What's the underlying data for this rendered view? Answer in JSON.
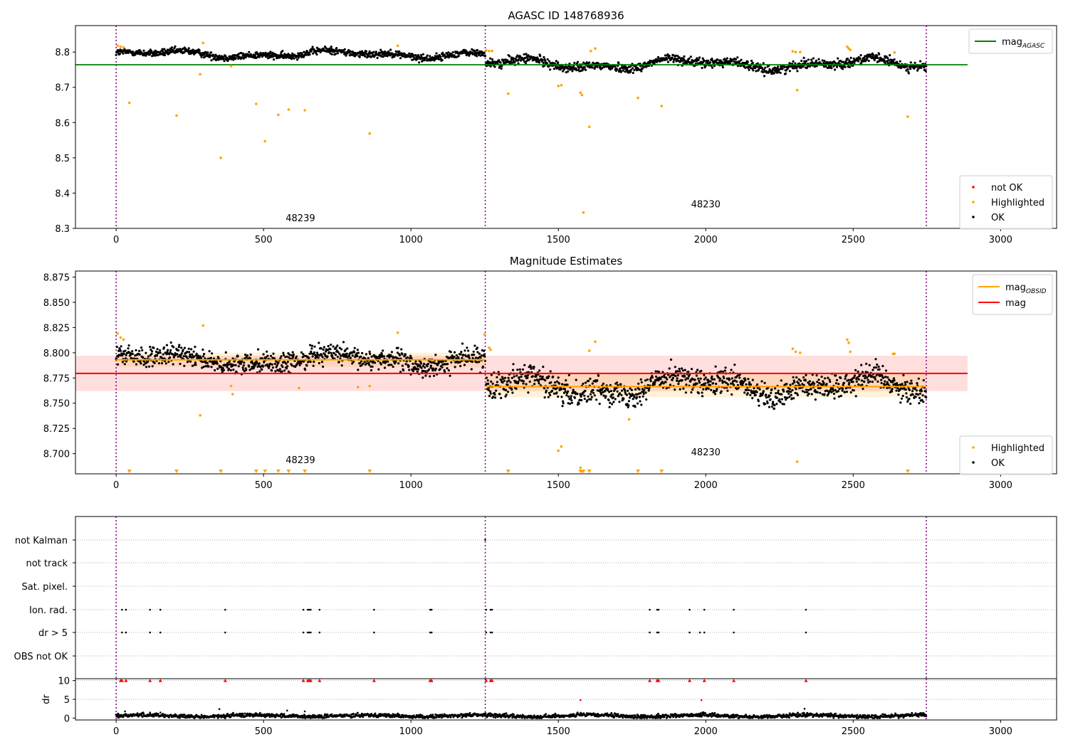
{
  "figure": {
    "title": "AGASC ID 148768936"
  },
  "chart_data": [
    {
      "type": "scatter",
      "title": "AGASC ID 148768936",
      "xlim": [
        -138,
        3190
      ],
      "ylim": [
        8.3,
        8.875
      ],
      "xticks": [
        0,
        500,
        1000,
        1500,
        2000,
        2500,
        3000
      ],
      "yticks": [
        8.3,
        8.4,
        8.5,
        8.6,
        8.7,
        8.8
      ],
      "ytick_labels": [
        "8.3",
        "8.4",
        "8.5",
        "8.6",
        "8.7",
        "8.8"
      ],
      "legend_top": {
        "placement": "top-right",
        "entries": [
          {
            "label": "mag",
            "sub": "AGASC",
            "color": "#008000",
            "kind": "line"
          }
        ]
      },
      "legend_bottom": {
        "placement": "bottom-right",
        "entries": [
          {
            "label": "not OK",
            "color": "#ff0000",
            "kind": "dot"
          },
          {
            "label": "Highlighted",
            "color": "#ffa500",
            "kind": "dot"
          },
          {
            "label": "OK",
            "color": "#000000",
            "kind": "dot"
          }
        ]
      },
      "obs_boundaries": [
        0,
        1252,
        2748
      ],
      "obs_labels": [
        {
          "text": "48239",
          "x": 625,
          "y": 8.32
        },
        {
          "text": "48230",
          "x": 2000,
          "y": 8.36
        }
      ],
      "lines": [
        {
          "name": "mag_AGASC",
          "y": 8.764,
          "x": [
            -138,
            2888
          ],
          "color": "#008000"
        }
      ],
      "ok_segments": [
        {
          "x": [
            0,
            1252
          ],
          "mean": 8.794,
          "amp": 0.012,
          "noise": 0.007
        },
        {
          "x": [
            1255,
            2748
          ],
          "mean": 8.766,
          "amp": 0.018,
          "noise": 0.009
        }
      ],
      "highlighted": [
        [
          5,
          8.818
        ],
        [
          15,
          8.815
        ],
        [
          25,
          8.813
        ],
        [
          45,
          8.656
        ],
        [
          205,
          8.62
        ],
        [
          285,
          8.737
        ],
        [
          295,
          8.826
        ],
        [
          355,
          8.5
        ],
        [
          390,
          8.76
        ],
        [
          475,
          8.653
        ],
        [
          505,
          8.547
        ],
        [
          550,
          8.622
        ],
        [
          585,
          8.637
        ],
        [
          640,
          8.635
        ],
        [
          860,
          8.569
        ],
        [
          955,
          8.818
        ],
        [
          1255,
          8.805
        ],
        [
          1265,
          8.803
        ],
        [
          1275,
          8.803
        ],
        [
          1330,
          8.682
        ],
        [
          1500,
          8.704
        ],
        [
          1510,
          8.706
        ],
        [
          1575,
          8.685
        ],
        [
          1580,
          8.678
        ],
        [
          1585,
          8.345
        ],
        [
          1605,
          8.588
        ],
        [
          1610,
          8.803
        ],
        [
          1625,
          8.81
        ],
        [
          1770,
          8.67
        ],
        [
          1850,
          8.647
        ],
        [
          2295,
          8.802
        ],
        [
          2305,
          8.8
        ],
        [
          2310,
          8.692
        ],
        [
          2320,
          8.8
        ],
        [
          2480,
          8.815
        ],
        [
          2485,
          8.81
        ],
        [
          2490,
          8.806
        ],
        [
          2640,
          8.799
        ],
        [
          2685,
          8.617
        ]
      ]
    },
    {
      "type": "scatter",
      "title": "Magnitude Estimates",
      "xlim": [
        -138,
        3190
      ],
      "ylim": [
        8.68,
        8.881
      ],
      "xticks": [
        0,
        500,
        1000,
        1500,
        2000,
        2500,
        3000
      ],
      "yticks": [
        8.7,
        8.725,
        8.75,
        8.775,
        8.8,
        8.825,
        8.85,
        8.875
      ],
      "ytick_labels": [
        "8.700",
        "8.725",
        "8.750",
        "8.775",
        "8.800",
        "8.825",
        "8.850",
        "8.875"
      ],
      "legend_top": {
        "placement": "top-right",
        "entries": [
          {
            "label": "mag",
            "sub": "OBSID",
            "color": "#ffa500",
            "kind": "line"
          },
          {
            "label": "mag",
            "sub": "",
            "color": "#ff0000",
            "kind": "line"
          }
        ]
      },
      "legend_bottom": {
        "placement": "bottom-right",
        "entries": [
          {
            "label": "Highlighted",
            "color": "#ffa500",
            "kind": "dot"
          },
          {
            "label": "OK",
            "color": "#000000",
            "kind": "dot"
          }
        ]
      },
      "obs_boundaries": [
        0,
        1252,
        2748
      ],
      "obs_labels": [
        {
          "text": "48239",
          "x": 625,
          "y": 8.6905
        },
        {
          "text": "48230",
          "x": 2000,
          "y": 8.6985
        }
      ],
      "bands": [
        {
          "x": [
            -138,
            2888
          ],
          "y": [
            8.762,
            8.797
          ],
          "color": "#ff0000",
          "opacity": 0.13
        },
        {
          "x": [
            0,
            1252
          ],
          "y": [
            8.786,
            8.8
          ],
          "color": "#ffa500",
          "opacity": 0.15
        },
        {
          "x": [
            1255,
            2748
          ],
          "y": [
            8.756,
            8.779
          ],
          "color": "#ffa500",
          "opacity": 0.15
        }
      ],
      "lines": [
        {
          "name": "mag",
          "y": 8.7795,
          "x": [
            -138,
            2888
          ],
          "color": "#ff0000"
        },
        {
          "name": "mag_OBSID_48239",
          "y": 8.793,
          "x": [
            0,
            1252
          ],
          "color": "#ffa500"
        },
        {
          "name": "mag_OBSID_48230",
          "y": 8.7665,
          "x": [
            1255,
            2748
          ],
          "color": "#ffa500"
        }
      ],
      "ok_segments": [
        {
          "x": [
            0,
            1252
          ],
          "mean": 8.793,
          "amp": 0.008,
          "noise": 0.007
        },
        {
          "x": [
            1255,
            2748
          ],
          "mean": 8.767,
          "amp": 0.012,
          "noise": 0.009
        }
      ],
      "highlighted": [
        [
          5,
          8.819
        ],
        [
          15,
          8.815
        ],
        [
          25,
          8.813
        ],
        [
          285,
          8.738
        ],
        [
          295,
          8.827
        ],
        [
          390,
          8.767
        ],
        [
          395,
          8.759
        ],
        [
          620,
          8.765
        ],
        [
          820,
          8.766
        ],
        [
          860,
          8.767
        ],
        [
          955,
          8.82
        ],
        [
          1250,
          8.818
        ],
        [
          1265,
          8.805
        ],
        [
          1270,
          8.803
        ],
        [
          1500,
          8.703
        ],
        [
          1510,
          8.707
        ],
        [
          1575,
          8.686
        ],
        [
          1605,
          8.802
        ],
        [
          1625,
          8.811
        ],
        [
          1740,
          8.734
        ],
        [
          2295,
          8.804
        ],
        [
          2305,
          8.801
        ],
        [
          2310,
          8.692
        ],
        [
          2320,
          8.8
        ],
        [
          2480,
          8.813
        ],
        [
          2485,
          8.81
        ],
        [
          2490,
          8.801
        ],
        [
          2635,
          8.799
        ],
        [
          2640,
          8.799
        ]
      ],
      "below_range_x": [
        45,
        205,
        355,
        475,
        505,
        550,
        585,
        640,
        860,
        1330,
        1575,
        1580,
        1585,
        1605,
        1770,
        1850,
        2685
      ]
    },
    {
      "type": "scatter",
      "title": "",
      "xlim": [
        -138,
        3190
      ],
      "categories": [
        "not Kalman",
        "not track",
        "Sat. pixel.",
        "Ion. rad.",
        "dr > 5",
        "OBS not OK"
      ],
      "obs_boundaries": [
        0,
        1252,
        2748
      ],
      "flags": {
        "not Kalman": [
          1252
        ],
        "not track": [],
        "Sat. pixel.": [],
        "Ion. rad.": [
          20,
          33,
          115,
          150,
          370,
          635,
          650,
          655,
          660,
          690,
          875,
          1065,
          1070,
          1255,
          1270,
          1275,
          1810,
          1835,
          1840,
          1945,
          1995,
          2095,
          2340
        ],
        "dr > 5": [
          20,
          33,
          115,
          150,
          370,
          635,
          650,
          655,
          660,
          690,
          875,
          1065,
          1070,
          1255,
          1270,
          1275,
          1810,
          1835,
          1840,
          1945,
          1980,
          1995,
          2095,
          2340
        ],
        "OBS not OK": []
      }
    },
    {
      "type": "scatter",
      "title": "",
      "ylabel": "dr",
      "xlim": [
        -138,
        3190
      ],
      "ylim": [
        -0.5,
        10.5
      ],
      "xticks": [
        0,
        500,
        1000,
        1500,
        2000,
        2500,
        3000
      ],
      "yticks": [
        0,
        5,
        10
      ],
      "ytick_labels": [
        "0",
        "5",
        "10"
      ],
      "obs_boundaries": [
        0,
        1252,
        2748
      ],
      "ok_baseline": {
        "x": [
          0,
          2748
        ],
        "mean": 0.6,
        "noise": 0.35
      },
      "ok_outliers": [
        [
          30,
          1.8
        ],
        [
          115,
          1.5
        ],
        [
          150,
          1.5
        ],
        [
          350,
          2.4
        ],
        [
          580,
          2.0
        ],
        [
          640,
          1.8
        ],
        [
          1575,
          4.8
        ],
        [
          1985,
          4.8
        ],
        [
          2335,
          2.5
        ]
      ],
      "red_at_10": [
        15,
        20,
        33,
        115,
        150,
        370,
        635,
        650,
        655,
        660,
        690,
        875,
        1065,
        1070,
        1255,
        1270,
        1275,
        1810,
        1835,
        1840,
        1945,
        1995,
        2095,
        2340
      ]
    }
  ]
}
